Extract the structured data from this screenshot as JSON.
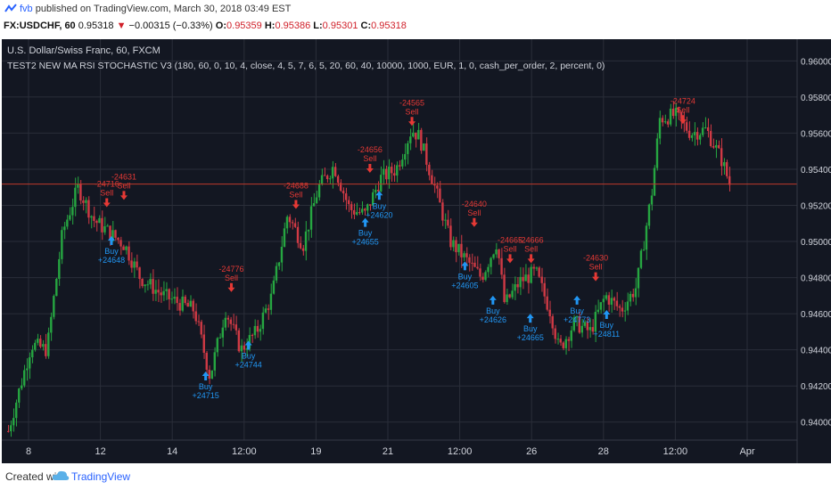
{
  "header": {
    "publisher": "fvb",
    "published_text": "published on TradingView.com, March 30, 2018 03:49 EST"
  },
  "symbol_line": {
    "symbol": "FX:USDCHF, 60",
    "last": "0.95318",
    "change": "−0.00315 (−0.33%)",
    "o_label": "O:",
    "o": "0.95359",
    "h_label": "H:",
    "h": "0.95386",
    "l_label": "L:",
    "l": "0.95301",
    "c_label": "C:",
    "c": "0.95318"
  },
  "chart_info": {
    "title": "U.S. Dollar/Swiss Franc, 60, FXCM",
    "strategy": "TEST2 NEW MA RSI STOCHASTIC V3 (180, 60, 0, 10, 4, close, 4, 5, 7, 6, 5, 20, 60, 40, 10000, 1000, EUR, 1, 0, cash_per_order, 2, percent, 0)"
  },
  "colors": {
    "background": "#131722",
    "grid": "#2a2e39",
    "up": "#26a641",
    "down": "#d03a45",
    "price_line": "#c0392b",
    "buy": "#2196f3",
    "sell": "#e53935",
    "axis_text": "#d1d4dc"
  },
  "footer": {
    "created_with": "Created with",
    "brand": "TradingView"
  },
  "chart_data": {
    "type": "candlestick",
    "ylim": [
      0.939,
      0.9612
    ],
    "current_price": 0.95318,
    "y_ticks": [
      "0.96000",
      "0.95800",
      "0.95600",
      "0.95400",
      "0.95200",
      "0.95000",
      "0.94800",
      "0.94600",
      "0.94400",
      "0.94200",
      "0.94000"
    ],
    "x_ticks": [
      "8",
      "12",
      "14",
      "12:00",
      "19",
      "21",
      "12:00",
      "26",
      "28",
      "12:00",
      "Apr"
    ],
    "price_path": [
      [
        0,
        0.9395
      ],
      [
        0.03,
        0.9443
      ],
      [
        0.05,
        0.944
      ],
      [
        0.07,
        0.9505
      ],
      [
        0.09,
        0.953
      ],
      [
        0.11,
        0.9512
      ],
      [
        0.13,
        0.9505
      ],
      [
        0.15,
        0.9498
      ],
      [
        0.17,
        0.948
      ],
      [
        0.2,
        0.947
      ],
      [
        0.24,
        0.9462
      ],
      [
        0.26,
        0.9425
      ],
      [
        0.28,
        0.9462
      ],
      [
        0.3,
        0.944
      ],
      [
        0.32,
        0.945
      ],
      [
        0.34,
        0.947
      ],
      [
        0.36,
        0.9515
      ],
      [
        0.38,
        0.9498
      ],
      [
        0.4,
        0.953
      ],
      [
        0.42,
        0.9542
      ],
      [
        0.44,
        0.9518
      ],
      [
        0.46,
        0.9515
      ],
      [
        0.48,
        0.9535
      ],
      [
        0.5,
        0.954
      ],
      [
        0.52,
        0.9562
      ],
      [
        0.53,
        0.9558
      ],
      [
        0.55,
        0.953
      ],
      [
        0.57,
        0.95
      ],
      [
        0.59,
        0.949
      ],
      [
        0.61,
        0.948
      ],
      [
        0.63,
        0.95
      ],
      [
        0.64,
        0.9465
      ],
      [
        0.66,
        0.9478
      ],
      [
        0.68,
        0.9483
      ],
      [
        0.7,
        0.946
      ],
      [
        0.71,
        0.944
      ],
      [
        0.73,
        0.9455
      ],
      [
        0.75,
        0.945
      ],
      [
        0.77,
        0.947
      ],
      [
        0.79,
        0.9462
      ],
      [
        0.81,
        0.9475
      ],
      [
        0.83,
        0.9528
      ],
      [
        0.84,
        0.9568
      ],
      [
        0.86,
        0.957
      ],
      [
        0.88,
        0.956
      ],
      [
        0.9,
        0.9562
      ],
      [
        0.92,
        0.9545
      ],
      [
        0.93,
        0.9532
      ]
    ],
    "signals": [
      {
        "type": "buy",
        "pos": 0.134,
        "price": 0.9503,
        "label": "Buy",
        "value": "+24648"
      },
      {
        "type": "sell",
        "pos": 0.15,
        "price": 0.9523,
        "label": "Sell",
        "value": "-24631"
      },
      {
        "type": "sell",
        "pos": 0.128,
        "price": 0.9519,
        "label": "Sell",
        "value": "-24716"
      },
      {
        "type": "buy",
        "pos": 0.255,
        "price": 0.9428,
        "label": "Buy",
        "value": "+24715"
      },
      {
        "type": "sell",
        "pos": 0.288,
        "price": 0.9472,
        "label": "Sell",
        "value": "-24776"
      },
      {
        "type": "buy",
        "pos": 0.31,
        "price": 0.9445,
        "label": "Buy",
        "value": "+24744"
      },
      {
        "type": "sell",
        "pos": 0.371,
        "price": 0.9518,
        "label": "Sell",
        "value": "-24688"
      },
      {
        "type": "buy",
        "pos": 0.46,
        "price": 0.9513,
        "label": "Buy",
        "value": "+24655"
      },
      {
        "type": "buy",
        "pos": 0.478,
        "price": 0.9528,
        "label": "Buy",
        "value": "+24620"
      },
      {
        "type": "sell",
        "pos": 0.466,
        "price": 0.9538,
        "label": "Sell",
        "value": "-24656"
      },
      {
        "type": "sell",
        "pos": 0.52,
        "price": 0.9564,
        "label": "Sell",
        "value": "-24565"
      },
      {
        "type": "buy",
        "pos": 0.588,
        "price": 0.9489,
        "label": "Buy",
        "value": "+24605"
      },
      {
        "type": "sell",
        "pos": 0.6,
        "price": 0.9508,
        "label": "Sell",
        "value": "-24640"
      },
      {
        "type": "buy",
        "pos": 0.624,
        "price": 0.947,
        "label": "Buy",
        "value": "+24626"
      },
      {
        "type": "sell",
        "pos": 0.646,
        "price": 0.9488,
        "label": "Sell",
        "value": "-24665"
      },
      {
        "type": "buy",
        "pos": 0.672,
        "price": 0.946,
        "label": "Buy",
        "value": "+24665"
      },
      {
        "type": "sell",
        "pos": 0.673,
        "price": 0.9488,
        "label": "Sell",
        "value": "-24666"
      },
      {
        "type": "buy",
        "pos": 0.732,
        "price": 0.947,
        "label": "Buy",
        "value": "+24773"
      },
      {
        "type": "sell",
        "pos": 0.756,
        "price": 0.9478,
        "label": "Sell",
        "value": "-24630"
      },
      {
        "type": "buy",
        "pos": 0.77,
        "price": 0.9462,
        "label": "Buy",
        "value": "+24811"
      },
      {
        "type": "sell",
        "pos": 0.868,
        "price": 0.9565,
        "label": "Sell",
        "value": "-24724"
      }
    ]
  }
}
